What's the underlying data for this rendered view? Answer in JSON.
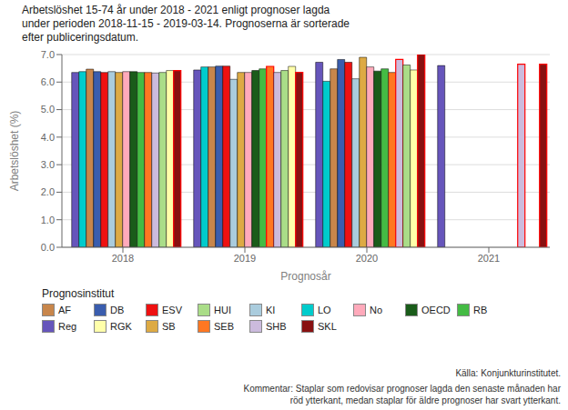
{
  "chart_data": {
    "type": "bar",
    "title": "Arbetslöshet 15-74 år under 2018 - 2021 enligt prognoser lagda\nunder perioden 2018-11-15 - 2019-03-14. Prognoserna är sorterade\nefter publiceringsdatum.",
    "xlabel": "Prognosår",
    "ylabel": "Arbetslöshet (%)",
    "legend_title": "Prognosinstitut",
    "annotations": [
      "Källa: Konjunkturinstitutet.",
      "Kommentar: Staplar som redovisar prognoser lagda den senaste månaden har\nröd ytterkant, medan staplar för äldre prognoser har svart ytterkant."
    ],
    "categories": [
      "2018",
      "2019",
      "2020",
      "2021"
    ],
    "ylim": [
      0.0,
      7.0
    ],
    "yticks": [
      {
        "value": 0.0,
        "label": "0.0"
      },
      {
        "value": 1.0,
        "label": "1.0"
      },
      {
        "value": 2.0,
        "label": "2.0"
      },
      {
        "value": 3.0,
        "label": "3.0"
      },
      {
        "value": 4.0,
        "label": "4.0"
      },
      {
        "value": 5.0,
        "label": "5.0"
      },
      {
        "value": 6.0,
        "label": "6.0"
      },
      {
        "value": 7.0,
        "label": "7.0"
      }
    ],
    "grid": true,
    "series": [
      {
        "name": "Reg",
        "color": "#6655BB",
        "values": [
          6.35,
          6.44,
          6.72,
          6.6
        ],
        "recent": [
          false,
          false,
          false,
          false
        ]
      },
      {
        "name": "LO",
        "color": "#00CCCC",
        "values": [
          6.38,
          6.55,
          6.03,
          null
        ],
        "recent": [
          false,
          false,
          false,
          null
        ]
      },
      {
        "name": "AF",
        "color": "#C8864B",
        "values": [
          6.47,
          6.55,
          6.48,
          null
        ],
        "recent": [
          false,
          false,
          false,
          null
        ]
      },
      {
        "name": "DB",
        "color": "#3A5DAE",
        "values": [
          6.38,
          6.58,
          6.82,
          null
        ],
        "recent": [
          false,
          false,
          false,
          null
        ]
      },
      {
        "name": "ESV",
        "color": "#EE1111",
        "values": [
          6.35,
          6.58,
          6.72,
          null
        ],
        "recent": [
          false,
          false,
          false,
          null
        ]
      },
      {
        "name": "KI",
        "color": "#AACCDD",
        "values": [
          6.38,
          6.1,
          6.12,
          null
        ],
        "recent": [
          false,
          false,
          false,
          null
        ]
      },
      {
        "name": "SB",
        "color": "#DDAA44",
        "values": [
          6.35,
          6.35,
          6.9,
          null
        ],
        "recent": [
          false,
          false,
          false,
          null
        ]
      },
      {
        "name": "No",
        "color": "#FFAABB",
        "values": [
          6.38,
          6.35,
          6.55,
          null
        ],
        "recent": [
          false,
          false,
          false,
          null
        ]
      },
      {
        "name": "OECD",
        "color": "#1A5C1A",
        "values": [
          6.38,
          6.42,
          6.4,
          null
        ],
        "recent": [
          false,
          false,
          false,
          null
        ]
      },
      {
        "name": "RB",
        "color": "#44BB44",
        "values": [
          6.35,
          6.48,
          6.48,
          null
        ],
        "recent": [
          false,
          false,
          false,
          null
        ]
      },
      {
        "name": "SEB",
        "color": "#FF7722",
        "values": [
          6.35,
          6.57,
          6.35,
          null
        ],
        "recent": [
          false,
          true,
          false,
          null
        ]
      },
      {
        "name": "SHB",
        "color": "#CCBBDD",
        "values": [
          6.33,
          6.35,
          6.82,
          6.65
        ],
        "recent": [
          false,
          false,
          true,
          true
        ]
      },
      {
        "name": "HUI",
        "color": "#AADD88",
        "values": [
          6.35,
          6.42,
          6.62,
          null
        ],
        "recent": [
          false,
          false,
          false,
          null
        ]
      },
      {
        "name": "RGK",
        "color": "#FFFFAA",
        "values": [
          6.42,
          6.57,
          6.44,
          null
        ],
        "recent": [
          false,
          false,
          false,
          null
        ]
      },
      {
        "name": "SKL",
        "color": "#881111",
        "values": [
          6.42,
          6.35,
          7.0,
          6.65
        ],
        "recent": [
          true,
          true,
          true,
          true
        ]
      }
    ]
  }
}
